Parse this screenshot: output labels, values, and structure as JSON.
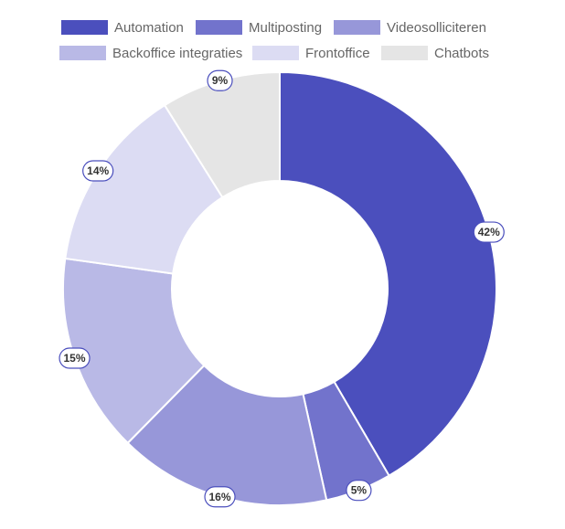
{
  "chart_data": {
    "type": "doughnut",
    "categories": [
      "Automation",
      "Multiposting",
      "Videosolliciteren",
      "Backoffice integraties",
      "Frontoffice",
      "Chatbots"
    ],
    "values": [
      42,
      5,
      16,
      15,
      14,
      9
    ],
    "labels": [
      "42%",
      "5%",
      "16%",
      "15%",
      "14%",
      "9%"
    ],
    "colors": [
      "#4b4fbd",
      "#7273cc",
      "#9797d9",
      "#b9b9e6",
      "#dcdcf3",
      "#e5e5e5"
    ],
    "legend_position": "top",
    "unit": "%"
  }
}
